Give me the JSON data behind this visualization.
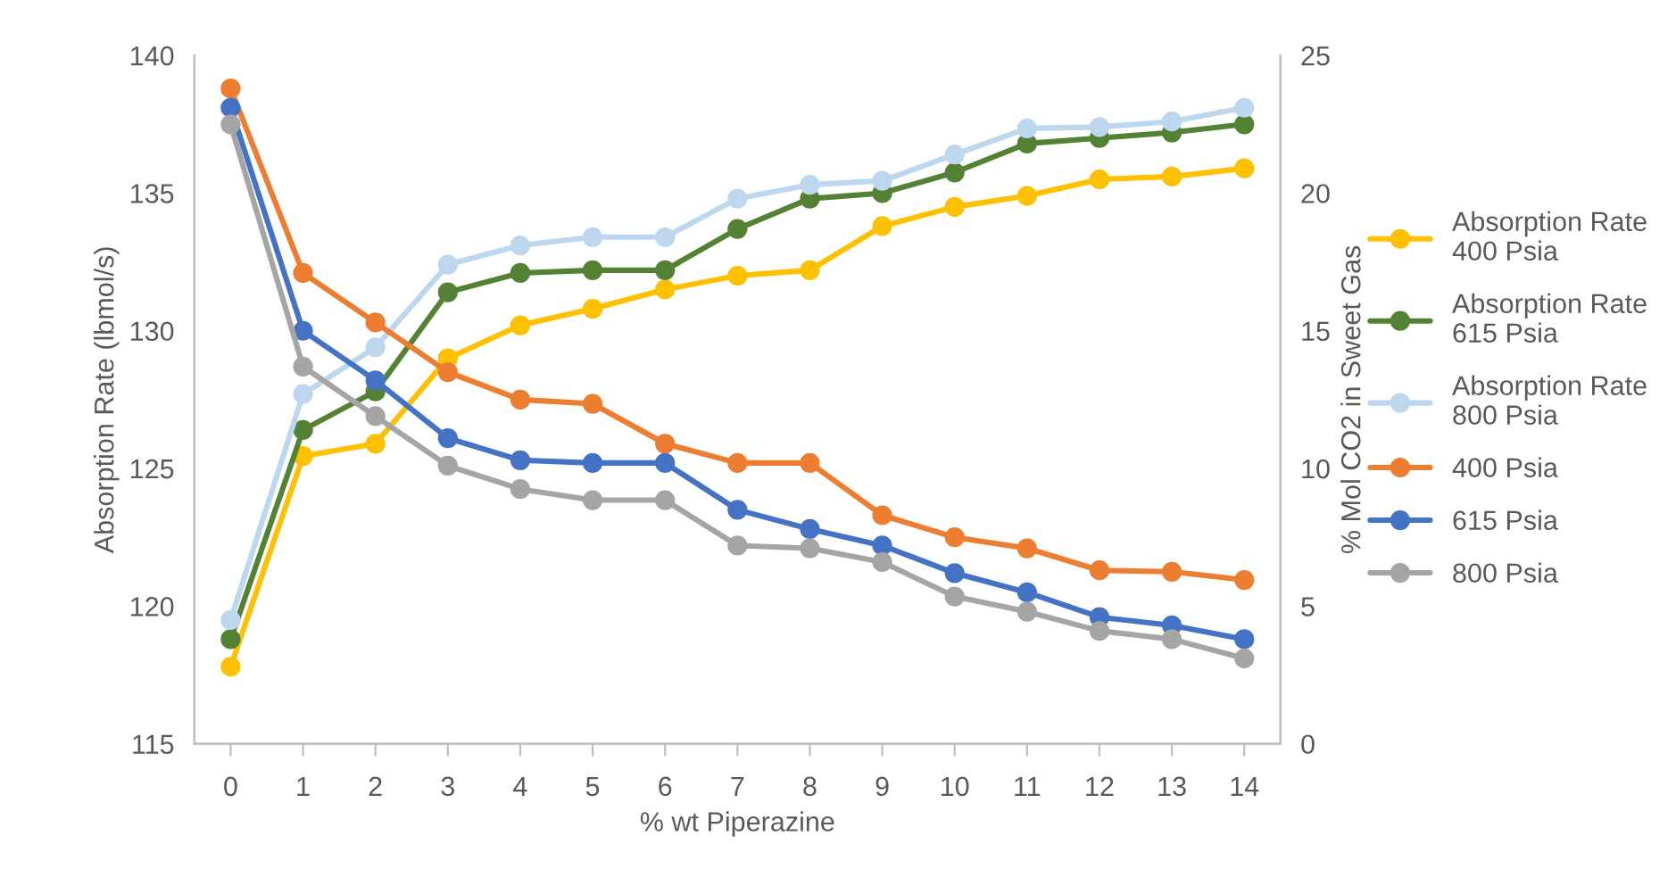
{
  "chart_data": {
    "type": "line",
    "xlabel": "% wt Piperazine",
    "ylabel": "Absorption Rate (lbmol/s)",
    "y2label": "% Mol CO2 in Sweet Gas",
    "categories": [
      "0",
      "1",
      "2",
      "3",
      "4",
      "5",
      "6",
      "7",
      "8",
      "9",
      "10",
      "11",
      "12",
      "13",
      "14"
    ],
    "ylim": [
      115,
      140
    ],
    "yticks": [
      115,
      120,
      125,
      130,
      135,
      140
    ],
    "y2lim": [
      0,
      25
    ],
    "y2ticks": [
      0,
      5,
      10,
      15,
      20,
      25
    ],
    "marker": "circle",
    "line_style": "solid",
    "grid": false,
    "legend": "right",
    "series": [
      {
        "name": "Absorption Rate\n400 Psia",
        "color": "#ffc000",
        "values": [
          117.8,
          125.45,
          125.9,
          129.0,
          130.2,
          130.8,
          131.5,
          132.0,
          132.2,
          133.8,
          134.5,
          134.9,
          135.5,
          135.6,
          135.9
        ]
      },
      {
        "name": "Absorption Rate\n615 Psia",
        "color": "#548235",
        "values": [
          118.8,
          126.4,
          127.8,
          131.4,
          132.1,
          132.2,
          132.2,
          133.7,
          134.8,
          135.0,
          135.75,
          136.8,
          137.0,
          137.2,
          137.5
        ]
      },
      {
        "name": "Absorption Rate\n800 Psia",
        "color": "#bdd7ee",
        "values": [
          119.5,
          127.7,
          129.4,
          132.4,
          133.1,
          133.4,
          133.4,
          134.8,
          135.3,
          135.45,
          136.4,
          137.35,
          137.4,
          137.6,
          138.1
        ]
      },
      {
        "name": "400 Psia",
        "color": "#ed7d31",
        "axis": "y2",
        "values": [
          23.8,
          17.1,
          15.3,
          13.5,
          12.5,
          12.35,
          10.9,
          10.2,
          10.2,
          8.3,
          7.5,
          7.1,
          6.3,
          6.25,
          5.95
        ]
      },
      {
        "name": "615 Psia",
        "color": "#4472c4",
        "axis": "y2",
        "values": [
          23.1,
          15.0,
          13.2,
          11.1,
          10.3,
          10.2,
          10.2,
          8.5,
          7.8,
          7.2,
          6.2,
          5.5,
          4.6,
          4.3,
          3.8
        ]
      },
      {
        "name": "800 Psia",
        "color": "#a5a5a5",
        "axis": "y2",
        "values": [
          22.5,
          13.7,
          11.9,
          10.1,
          9.25,
          8.85,
          8.85,
          7.2,
          7.1,
          6.6,
          5.35,
          4.8,
          4.1,
          3.8,
          3.1
        ]
      }
    ]
  }
}
